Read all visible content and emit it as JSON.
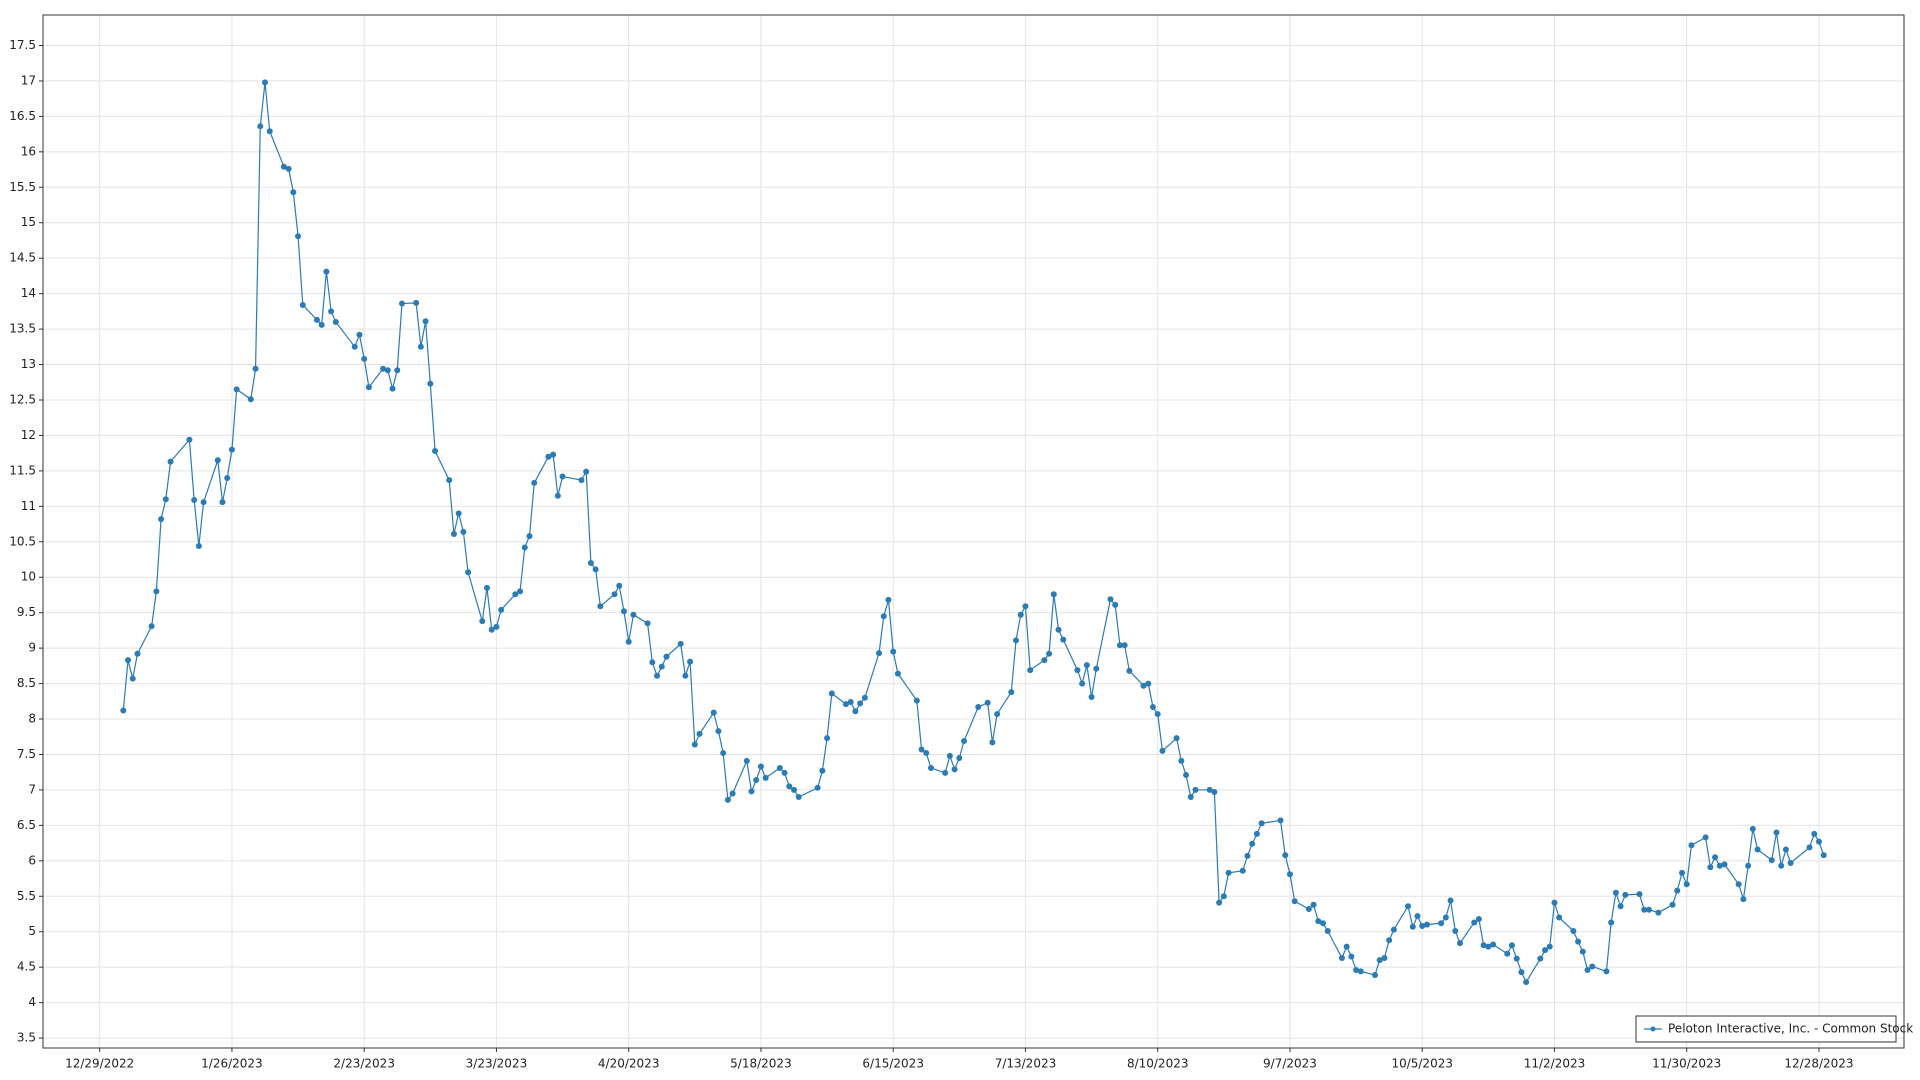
{
  "chart_data": {
    "type": "line",
    "x": [
      "2023-01-03",
      "2023-01-04",
      "2023-01-05",
      "2023-01-06",
      "2023-01-09",
      "2023-01-10",
      "2023-01-11",
      "2023-01-12",
      "2023-01-13",
      "2023-01-17",
      "2023-01-18",
      "2023-01-19",
      "2023-01-20",
      "2023-01-23",
      "2023-01-24",
      "2023-01-25",
      "2023-01-26",
      "2023-01-27",
      "2023-01-30",
      "2023-01-31",
      "2023-02-01",
      "2023-02-02",
      "2023-02-03",
      "2023-02-06",
      "2023-02-07",
      "2023-02-08",
      "2023-02-09",
      "2023-02-10",
      "2023-02-13",
      "2023-02-14",
      "2023-02-15",
      "2023-02-16",
      "2023-02-17",
      "2023-02-21",
      "2023-02-22",
      "2023-02-23",
      "2023-02-24",
      "2023-02-27",
      "2023-02-28",
      "2023-03-01",
      "2023-03-02",
      "2023-03-03",
      "2023-03-06",
      "2023-03-07",
      "2023-03-08",
      "2023-03-09",
      "2023-03-10",
      "2023-03-13",
      "2023-03-14",
      "2023-03-15",
      "2023-03-16",
      "2023-03-17",
      "2023-03-20",
      "2023-03-21",
      "2023-03-22",
      "2023-03-23",
      "2023-03-24",
      "2023-03-27",
      "2023-03-28",
      "2023-03-29",
      "2023-03-30",
      "2023-03-31",
      "2023-04-03",
      "2023-04-04",
      "2023-04-05",
      "2023-04-06",
      "2023-04-10",
      "2023-04-11",
      "2023-04-12",
      "2023-04-13",
      "2023-04-14",
      "2023-04-17",
      "2023-04-18",
      "2023-04-19",
      "2023-04-20",
      "2023-04-21",
      "2023-04-24",
      "2023-04-25",
      "2023-04-26",
      "2023-04-27",
      "2023-04-28",
      "2023-05-01",
      "2023-05-02",
      "2023-05-03",
      "2023-05-04",
      "2023-05-05",
      "2023-05-08",
      "2023-05-09",
      "2023-05-10",
      "2023-05-11",
      "2023-05-12",
      "2023-05-15",
      "2023-05-16",
      "2023-05-17",
      "2023-05-18",
      "2023-05-19",
      "2023-05-22",
      "2023-05-23",
      "2023-05-24",
      "2023-05-25",
      "2023-05-26",
      "2023-05-30",
      "2023-05-31",
      "2023-06-01",
      "2023-06-02",
      "2023-06-05",
      "2023-06-06",
      "2023-06-07",
      "2023-06-08",
      "2023-06-09",
      "2023-06-12",
      "2023-06-13",
      "2023-06-14",
      "2023-06-15",
      "2023-06-16",
      "2023-06-20",
      "2023-06-21",
      "2023-06-22",
      "2023-06-23",
      "2023-06-26",
      "2023-06-27",
      "2023-06-28",
      "2023-06-29",
      "2023-06-30",
      "2023-07-03",
      "2023-07-05",
      "2023-07-06",
      "2023-07-07",
      "2023-07-10",
      "2023-07-11",
      "2023-07-12",
      "2023-07-13",
      "2023-07-14",
      "2023-07-17",
      "2023-07-18",
      "2023-07-19",
      "2023-07-20",
      "2023-07-21",
      "2023-07-24",
      "2023-07-25",
      "2023-07-26",
      "2023-07-27",
      "2023-07-28",
      "2023-07-31",
      "2023-08-01",
      "2023-08-02",
      "2023-08-03",
      "2023-08-04",
      "2023-08-07",
      "2023-08-08",
      "2023-08-09",
      "2023-08-10",
      "2023-08-11",
      "2023-08-14",
      "2023-08-15",
      "2023-08-16",
      "2023-08-17",
      "2023-08-18",
      "2023-08-21",
      "2023-08-22",
      "2023-08-23",
      "2023-08-24",
      "2023-08-25",
      "2023-08-28",
      "2023-08-29",
      "2023-08-30",
      "2023-08-31",
      "2023-09-01",
      "2023-09-05",
      "2023-09-06",
      "2023-09-07",
      "2023-09-08",
      "2023-09-11",
      "2023-09-12",
      "2023-09-13",
      "2023-09-14",
      "2023-09-15",
      "2023-09-18",
      "2023-09-19",
      "2023-09-20",
      "2023-09-21",
      "2023-09-22",
      "2023-09-25",
      "2023-09-26",
      "2023-09-27",
      "2023-09-28",
      "2023-09-29",
      "2023-10-02",
      "2023-10-03",
      "2023-10-04",
      "2023-10-05",
      "2023-10-06",
      "2023-10-09",
      "2023-10-10",
      "2023-10-11",
      "2023-10-12",
      "2023-10-13",
      "2023-10-16",
      "2023-10-17",
      "2023-10-18",
      "2023-10-19",
      "2023-10-20",
      "2023-10-23",
      "2023-10-24",
      "2023-10-25",
      "2023-10-26",
      "2023-10-27",
      "2023-10-30",
      "2023-10-31",
      "2023-11-01",
      "2023-11-02",
      "2023-11-03",
      "2023-11-06",
      "2023-11-07",
      "2023-11-08",
      "2023-11-09",
      "2023-11-10",
      "2023-11-13",
      "2023-11-14",
      "2023-11-15",
      "2023-11-16",
      "2023-11-17",
      "2023-11-20",
      "2023-11-21",
      "2023-11-22",
      "2023-11-24",
      "2023-11-27",
      "2023-11-28",
      "2023-11-29",
      "2023-11-30",
      "2023-12-01",
      "2023-12-04",
      "2023-12-05",
      "2023-12-06",
      "2023-12-07",
      "2023-12-08",
      "2023-12-11",
      "2023-12-12",
      "2023-12-13",
      "2023-12-14",
      "2023-12-15",
      "2023-12-18",
      "2023-12-19",
      "2023-12-20",
      "2023-12-21",
      "2023-12-22",
      "2023-12-26",
      "2023-12-27",
      "2023-12-28",
      "2023-12-29"
    ],
    "series": [
      {
        "name": "Peloton Interactive, Inc. - Common Stock",
        "color": "#2b7bb5",
        "values": [
          8.12,
          8.83,
          8.57,
          8.92,
          9.31,
          9.8,
          10.82,
          11.1,
          11.63,
          11.94,
          11.09,
          10.44,
          11.06,
          11.65,
          11.06,
          11.4,
          11.8,
          12.65,
          12.51,
          12.94,
          16.36,
          16.98,
          16.29,
          15.79,
          15.76,
          15.43,
          14.81,
          13.84,
          13.63,
          13.56,
          14.31,
          13.75,
          13.6,
          13.25,
          13.42,
          13.08,
          12.68,
          12.94,
          12.92,
          12.66,
          12.92,
          13.86,
          13.87,
          13.25,
          13.61,
          12.73,
          11.78,
          11.37,
          10.61,
          10.9,
          10.64,
          10.07,
          9.38,
          9.85,
          9.26,
          9.3,
          9.54,
          9.76,
          9.8,
          10.42,
          10.58,
          11.33,
          11.7,
          11.73,
          11.15,
          11.42,
          11.37,
          11.49,
          10.2,
          10.11,
          9.59,
          9.76,
          9.88,
          9.52,
          9.09,
          9.47,
          9.35,
          8.8,
          8.61,
          8.74,
          8.88,
          9.06,
          8.61,
          8.81,
          7.64,
          7.79,
          8.09,
          7.83,
          7.52,
          6.86,
          6.95,
          7.41,
          6.98,
          7.14,
          7.33,
          7.17,
          7.31,
          7.24,
          7.05,
          7.0,
          6.9,
          7.03,
          7.27,
          7.73,
          8.36,
          8.21,
          8.24,
          8.11,
          8.22,
          8.3,
          8.93,
          9.45,
          9.68,
          8.95,
          8.64,
          8.26,
          7.57,
          7.52,
          7.31,
          7.24,
          7.48,
          7.29,
          7.45,
          7.69,
          8.17,
          8.23,
          7.67,
          8.07,
          8.38,
          9.11,
          9.47,
          9.59,
          8.69,
          8.83,
          8.92,
          9.76,
          9.26,
          9.12,
          8.69,
          8.5,
          8.76,
          8.31,
          8.71,
          9.69,
          9.61,
          9.04,
          9.04,
          8.68,
          8.47,
          8.5,
          8.17,
          8.07,
          7.55,
          7.73,
          7.41,
          7.21,
          6.9,
          7.0,
          7.0,
          6.97,
          5.41,
          5.5,
          5.83,
          5.86,
          6.07,
          6.24,
          6.38,
          6.53,
          6.57,
          6.08,
          5.81,
          5.43,
          5.32,
          5.38,
          5.15,
          5.12,
          5.01,
          4.63,
          4.79,
          4.65,
          4.46,
          4.44,
          4.39,
          4.6,
          4.63,
          4.88,
          5.03,
          5.36,
          5.07,
          5.22,
          5.08,
          5.1,
          5.12,
          5.2,
          5.44,
          5.01,
          4.84,
          5.13,
          5.18,
          4.81,
          4.79,
          4.82,
          4.69,
          4.81,
          4.62,
          4.43,
          4.29,
          4.62,
          4.74,
          4.79,
          5.41,
          5.2,
          5.01,
          4.86,
          4.72,
          4.46,
          4.51,
          4.44,
          5.13,
          5.55,
          5.36,
          5.52,
          5.53,
          5.31,
          5.31,
          5.27,
          5.38,
          5.58,
          5.83,
          5.67,
          6.22,
          6.33,
          5.91,
          6.05,
          5.93,
          5.95,
          5.67,
          5.46,
          5.93,
          6.45,
          6.16,
          6.01,
          6.4,
          5.93,
          6.16,
          5.97,
          6.19,
          6.38,
          6.27,
          6.08
        ]
      }
    ],
    "xlim": [
      "2022-12-17",
      "2024-01-15"
    ],
    "xticks": [
      {
        "value": "2022-12-29",
        "label": "12/29/2022"
      },
      {
        "value": "2023-01-26",
        "label": "1/26/2023"
      },
      {
        "value": "2023-02-23",
        "label": "2/23/2023"
      },
      {
        "value": "2023-03-23",
        "label": "3/23/2023"
      },
      {
        "value": "2023-04-20",
        "label": "4/20/2023"
      },
      {
        "value": "2023-05-18",
        "label": "5/18/2023"
      },
      {
        "value": "2023-06-15",
        "label": "6/15/2023"
      },
      {
        "value": "2023-07-13",
        "label": "7/13/2023"
      },
      {
        "value": "2023-08-10",
        "label": "8/10/2023"
      },
      {
        "value": "2023-09-07",
        "label": "9/7/2023"
      },
      {
        "value": "2023-10-05",
        "label": "10/5/2023"
      },
      {
        "value": "2023-11-02",
        "label": "11/2/2023"
      },
      {
        "value": "2023-11-30",
        "label": "11/30/2023"
      },
      {
        "value": "2023-12-28",
        "label": "12/28/2023"
      }
    ],
    "ylim": [
      3.36,
      17.93
    ],
    "yticks": [
      3.5,
      4,
      4.5,
      5,
      5.5,
      6,
      6.5,
      7,
      7.5,
      8,
      8.5,
      9,
      9.5,
      10,
      10.5,
      11,
      11.5,
      12,
      12.5,
      13,
      13.5,
      14,
      14.5,
      15,
      15.5,
      16,
      16.5,
      17,
      17.5
    ],
    "grid": true,
    "legend": "bottom-right"
  }
}
